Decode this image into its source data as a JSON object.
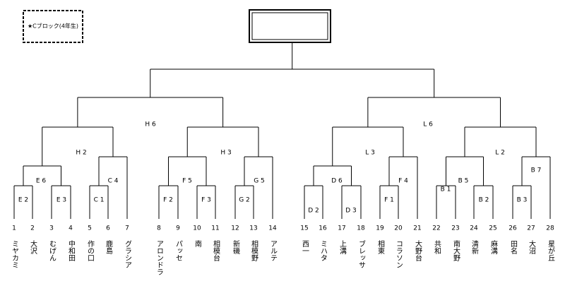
{
  "header": {
    "title": "★Cブロック(4年生)"
  },
  "teams": [
    {
      "number": 1,
      "name": "ミヤカミ"
    },
    {
      "number": 2,
      "name": "大沢"
    },
    {
      "number": 3,
      "name": "むげん"
    },
    {
      "number": 4,
      "name": "中和田"
    },
    {
      "number": 5,
      "name": "作の口"
    },
    {
      "number": 6,
      "name": "鹿島"
    },
    {
      "number": 7,
      "name": "グラシア"
    },
    {
      "number": 8,
      "name": "アロンドラ"
    },
    {
      "number": 9,
      "name": "パッセ"
    },
    {
      "number": 10,
      "name": "南"
    },
    {
      "number": 11,
      "name": "相模台"
    },
    {
      "number": 12,
      "name": "新磯"
    },
    {
      "number": 13,
      "name": "相模野"
    },
    {
      "number": 14,
      "name": "アルテ"
    },
    {
      "number": 15,
      "name": "西一"
    },
    {
      "number": 16,
      "name": "ミハタ"
    },
    {
      "number": 17,
      "name": "上溝"
    },
    {
      "number": 18,
      "name": "ブレッサ"
    },
    {
      "number": 19,
      "name": "相東"
    },
    {
      "number": 20,
      "name": "コラソン"
    },
    {
      "number": 21,
      "name": "大野台"
    },
    {
      "number": 22,
      "name": "共和"
    },
    {
      "number": 23,
      "name": "南大野"
    },
    {
      "number": 24,
      "name": "清新"
    },
    {
      "number": 25,
      "name": "麻溝"
    },
    {
      "number": 26,
      "name": "田名"
    },
    {
      "number": 27,
      "name": "大沼"
    },
    {
      "number": 28,
      "name": "星が丘"
    }
  ],
  "matches": [
    {
      "label": "E 2"
    },
    {
      "label": "E 3"
    },
    {
      "label": "E 6"
    },
    {
      "label": "C 1"
    },
    {
      "label": "C 4"
    },
    {
      "label": "H 2"
    },
    {
      "label": "F 2"
    },
    {
      "label": "F 3"
    },
    {
      "label": "F 5"
    },
    {
      "label": "G 2"
    },
    {
      "label": "G 5"
    },
    {
      "label": "H 3"
    },
    {
      "label": "H 6"
    },
    {
      "label": "D 2"
    },
    {
      "label": "D 3"
    },
    {
      "label": "D 6"
    },
    {
      "label": "F 1"
    },
    {
      "label": "F 4"
    },
    {
      "label": "L 3"
    },
    {
      "label": "B 1"
    },
    {
      "label": "B 2"
    },
    {
      "label": "B 5"
    },
    {
      "label": "B 3"
    },
    {
      "label": "B 7"
    },
    {
      "label": "L 2"
    },
    {
      "label": "L 6"
    }
  ]
}
